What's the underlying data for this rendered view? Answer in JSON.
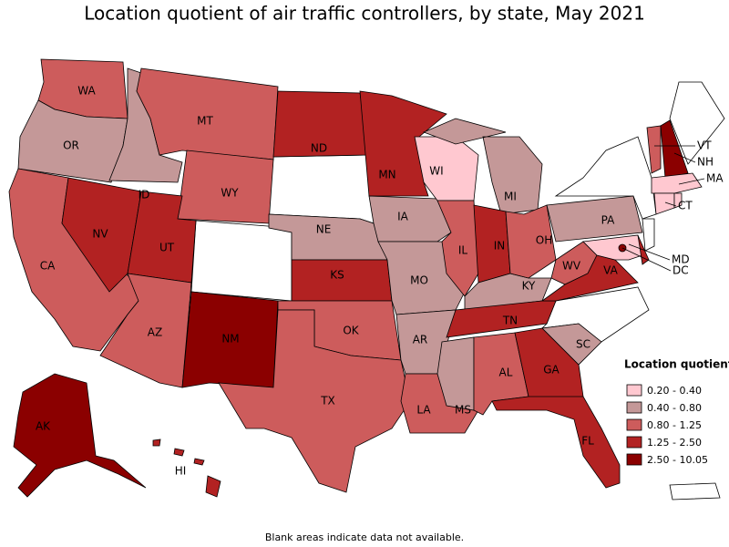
{
  "title": "Location quotient of air traffic controllers, by state, May 2021",
  "legend": {
    "title": "Location quotient",
    "bins": [
      {
        "label": "0.20 - 0.40",
        "color": "#ffc8d0"
      },
      {
        "label": "0.40 - 0.80",
        "color": "#c49898"
      },
      {
        "label": "0.80 - 1.25",
        "color": "#cd5c5c"
      },
      {
        "label": "1.25 - 2.50",
        "color": "#b22222"
      },
      {
        "label": "2.50 - 10.05",
        "color": "#8b0000"
      }
    ]
  },
  "states": [
    {
      "label": "WA",
      "class": 2
    },
    {
      "label": "OR",
      "class": 1
    },
    {
      "label": "CA",
      "class": 2
    },
    {
      "label": "NV",
      "class": 3
    },
    {
      "label": "ID",
      "class": 1
    },
    {
      "label": "MT",
      "class": 2
    },
    {
      "label": "WY",
      "class": 2
    },
    {
      "label": "UT",
      "class": 3
    },
    {
      "label": "AZ",
      "class": 2
    },
    {
      "label": "NM",
      "class": 4
    },
    {
      "label": "ND",
      "class": 3
    },
    {
      "label": "MN",
      "class": 3
    },
    {
      "label": "NE",
      "class": 1
    },
    {
      "label": "KS",
      "class": 3
    },
    {
      "label": "OK",
      "class": 2
    },
    {
      "label": "TX",
      "class": 2
    },
    {
      "label": "IA",
      "class": 1
    },
    {
      "label": "MO",
      "class": 1
    },
    {
      "label": "AR",
      "class": 1
    },
    {
      "label": "LA",
      "class": 2
    },
    {
      "label": "WI",
      "class": 0
    },
    {
      "label": "IL",
      "class": 2
    },
    {
      "label": "MS",
      "class": 1
    },
    {
      "label": "MI",
      "class": 1
    },
    {
      "label": "IN",
      "class": 3
    },
    {
      "label": "KY",
      "class": 1
    },
    {
      "label": "TN",
      "class": 3
    },
    {
      "label": "AL",
      "class": 2
    },
    {
      "label": "GA",
      "class": 3
    },
    {
      "label": "FL",
      "class": 3
    },
    {
      "label": "OH",
      "class": 2
    },
    {
      "label": "WV",
      "class": 2
    },
    {
      "label": "VA",
      "class": 3
    },
    {
      "label": "SC",
      "class": 1
    },
    {
      "label": "PA",
      "class": 1
    },
    {
      "label": "VT",
      "class": 2
    },
    {
      "label": "NH",
      "class": 4
    },
    {
      "label": "MA",
      "class": 0
    },
    {
      "label": "CT",
      "class": 0
    },
    {
      "label": "MD",
      "class": 0
    },
    {
      "label": "DC",
      "class": 4
    },
    {
      "label": "AK",
      "class": 4
    },
    {
      "label": "HI",
      "class": 3
    }
  ],
  "unlabeled": [
    {
      "class": 3
    },
    {
      "class": 0
    }
  ],
  "note": "Blank areas indicate data not available."
}
